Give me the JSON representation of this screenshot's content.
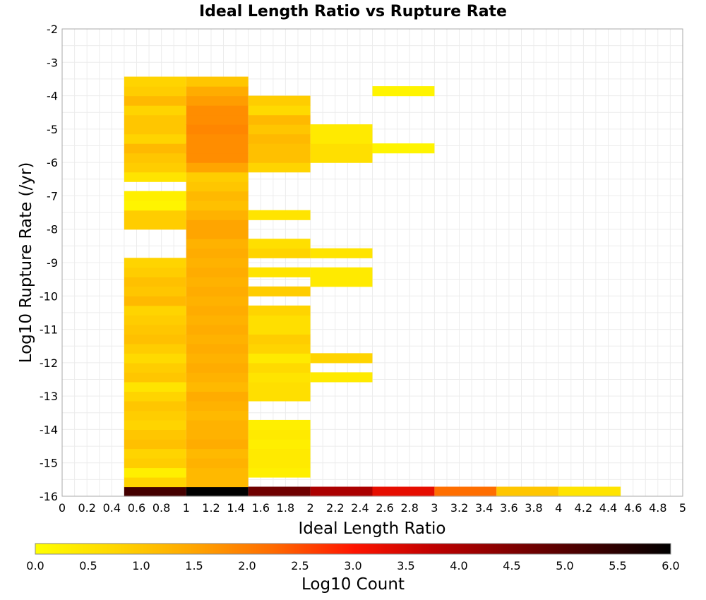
{
  "chart_data": {
    "type": "heatmap",
    "title": "Ideal Length Ratio vs Rupture Rate",
    "xlabel": "Ideal Length Ratio",
    "ylabel": "Log10 Rupture Rate (/yr)",
    "xlim": [
      0,
      5
    ],
    "ylim": [
      -16,
      -2
    ],
    "x_bin_width": 0.5,
    "y_bin_height": 0.2857,
    "x_ticks": [
      "0",
      "0.2",
      "0.4",
      "0.6",
      "0.8",
      "1",
      "1.2",
      "1.4",
      "1.6",
      "1.8",
      "2",
      "2.2",
      "2.4",
      "2.6",
      "2.8",
      "3",
      "3.2",
      "3.4",
      "3.6",
      "3.8",
      "4",
      "4.2",
      "4.4",
      "4.6",
      "4.8",
      "5"
    ],
    "y_ticks": [
      "-2",
      "-3",
      "-4",
      "-5",
      "-6",
      "-7",
      "-8",
      "-9",
      "-10",
      "-11",
      "-12",
      "-13",
      "-14",
      "-15",
      "-16"
    ],
    "grid": true,
    "colorbar": {
      "label": "Log10 Count",
      "min": 0,
      "max": 6,
      "ticks": [
        "0.0",
        "0.5",
        "1.0",
        "1.5",
        "2.0",
        "2.5",
        "3.0",
        "3.5",
        "4.0",
        "4.5",
        "5.0",
        "5.5",
        "6.0"
      ],
      "colors": [
        "#ffff00",
        "#ffd700",
        "#ffa500",
        "#ff6a00",
        "#ff1500",
        "#c00000",
        "#800000",
        "#400000",
        "#000000"
      ]
    },
    "columns": [
      {
        "x_start": 0.5,
        "values": [
          5.2,
          0.8,
          0.3,
          0.9,
          0.8,
          1.1,
          1.0,
          0.8,
          0.9,
          1.0,
          0.8,
          0.5,
          1.0,
          0.9,
          0.7,
          0.9,
          1.1,
          1.0,
          0.9,
          0.8,
          1.2,
          1.0,
          1.1,
          0.9,
          0.8,
          null,
          null,
          null,
          0.9,
          0.9,
          0.2,
          0.3,
          null,
          0.5,
          0.9,
          1.0,
          1.2,
          0.8,
          1.0,
          1.0,
          0.8,
          1.2,
          0.9,
          0.8
        ]
      },
      {
        "x_start": 1.0,
        "values": [
          6.0,
          1.2,
          1.2,
          1.3,
          1.2,
          1.4,
          1.3,
          1.3,
          1.2,
          1.3,
          1.4,
          1.2,
          1.3,
          1.4,
          1.3,
          1.4,
          1.3,
          1.4,
          1.3,
          1.4,
          1.3,
          1.4,
          1.3,
          1.4,
          1.3,
          1.4,
          1.3,
          1.5,
          1.5,
          1.3,
          1.1,
          1.2,
          1.0,
          0.9,
          1.5,
          1.8,
          1.8,
          1.8,
          1.9,
          1.8,
          1.8,
          1.6,
          1.4,
          1.0
        ]
      },
      {
        "x_start": 1.5,
        "values": [
          4.7,
          null,
          0.3,
          0.4,
          0.4,
          0.3,
          0.4,
          0.3,
          null,
          null,
          0.6,
          0.6,
          0.5,
          0.7,
          0.4,
          0.8,
          0.9,
          0.6,
          0.6,
          0.8,
          null,
          0.9,
          null,
          0.5,
          null,
          0.8,
          0.6,
          null,
          null,
          0.5,
          null,
          null,
          null,
          null,
          0.8,
          1.1,
          1.1,
          1.2,
          1.0,
          1.2,
          0.7,
          0.9
        ]
      },
      {
        "x_start": 2.0,
        "values": [
          4.0,
          null,
          null,
          null,
          null,
          null,
          null,
          null,
          null,
          null,
          null,
          null,
          0.4,
          null,
          0.8,
          null,
          null,
          null,
          null,
          null,
          null,
          null,
          0.4,
          0.4,
          null,
          0.5,
          null,
          null,
          null,
          null,
          null,
          null,
          null,
          null,
          null,
          0.6,
          0.6,
          0.4,
          0.4
        ]
      },
      {
        "x_start": 2.5,
        "values": [
          3.3,
          null,
          null,
          null,
          null,
          null,
          null,
          null,
          null,
          null,
          null,
          null,
          null,
          null,
          null,
          null,
          null,
          null,
          null,
          null,
          null,
          null,
          null,
          null,
          null,
          null,
          null,
          null,
          null,
          null,
          null,
          null,
          null,
          null,
          null,
          null,
          0.2,
          null,
          null,
          null,
          null,
          null,
          0.2
        ]
      },
      {
        "x_start": 3.0,
        "values": [
          2.2
        ]
      },
      {
        "x_start": 3.5,
        "values": [
          1.0
        ]
      },
      {
        "x_start": 4.0,
        "values": [
          0.5
        ]
      }
    ]
  }
}
